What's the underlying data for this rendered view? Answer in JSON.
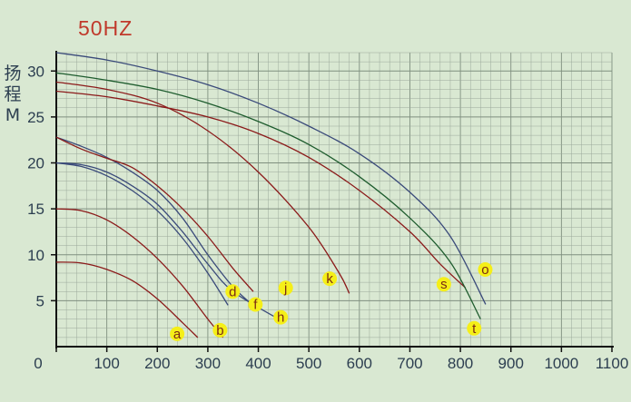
{
  "chart_data": {
    "type": "line",
    "title": "50HZ",
    "ylabel": "扬程M",
    "xlim": [
      0,
      1100
    ],
    "ylim": [
      0,
      32
    ],
    "x_ticks": [
      0,
      100,
      200,
      300,
      400,
      500,
      600,
      700,
      800,
      900,
      1000,
      1100
    ],
    "y_ticks": [
      5,
      10,
      15,
      20,
      25,
      30
    ],
    "grid": true,
    "series": [
      {
        "name": "a",
        "color": "#8b1a1a",
        "points": [
          [
            0,
            9.2
          ],
          [
            50,
            9.1
          ],
          [
            100,
            8.4
          ],
          [
            150,
            7.2
          ],
          [
            200,
            5.2
          ],
          [
            250,
            2.6
          ],
          [
            280,
            1
          ]
        ],
        "label_at": [
          250,
          1
        ]
      },
      {
        "name": "b",
        "color": "#8b1a1a",
        "points": [
          [
            0,
            15
          ],
          [
            50,
            14.8
          ],
          [
            100,
            13.8
          ],
          [
            150,
            12
          ],
          [
            200,
            9.6
          ],
          [
            250,
            6.6
          ],
          [
            300,
            3
          ],
          [
            330,
            1
          ]
        ],
        "label_at": [
          335,
          1.4
        ]
      },
      {
        "name": "d",
        "color": "#3a4a7a",
        "points": [
          [
            0,
            20
          ],
          [
            50,
            19.6
          ],
          [
            100,
            18.6
          ],
          [
            150,
            17
          ],
          [
            200,
            14.8
          ],
          [
            250,
            11.8
          ],
          [
            300,
            8
          ],
          [
            340,
            4.5
          ]
        ],
        "label_at": [
          360,
          5.6
        ]
      },
      {
        "name": "f",
        "color": "#3a4a7a",
        "points": [
          [
            0,
            22.8
          ],
          [
            50,
            21.8
          ],
          [
            100,
            20.6
          ],
          [
            150,
            19
          ],
          [
            200,
            17
          ],
          [
            250,
            14
          ],
          [
            300,
            10
          ],
          [
            350,
            6.5
          ],
          [
            400,
            4
          ]
        ],
        "label_at": [
          405,
          4.2
        ]
      },
      {
        "name": "h",
        "color": "#3a4a7a",
        "points": [
          [
            0,
            20
          ],
          [
            50,
            19.8
          ],
          [
            100,
            19
          ],
          [
            150,
            17.5
          ],
          [
            200,
            15.5
          ],
          [
            250,
            12.5
          ],
          [
            300,
            9
          ],
          [
            350,
            6
          ],
          [
            440,
            3
          ]
        ],
        "label_at": [
          455,
          2.8
        ]
      },
      {
        "name": "j",
        "color": "#8b1a1a",
        "points": [
          [
            0,
            22.8
          ],
          [
            50,
            21.5
          ],
          [
            100,
            20.5
          ],
          [
            150,
            19.5
          ],
          [
            200,
            17.5
          ],
          [
            250,
            15
          ],
          [
            300,
            12
          ],
          [
            350,
            8.5
          ],
          [
            390,
            6
          ]
        ],
        "label_at": [
          465,
          6
        ]
      },
      {
        "name": "k",
        "color": "#8b1a1a",
        "points": [
          [
            0,
            28.8
          ],
          [
            100,
            28
          ],
          [
            200,
            26.5
          ],
          [
            300,
            23.5
          ],
          [
            400,
            19
          ],
          [
            500,
            13
          ],
          [
            560,
            8
          ],
          [
            580,
            5.8
          ]
        ],
        "label_at": [
          552,
          7
        ]
      },
      {
        "name": "s",
        "color": "#8b1a1a",
        "points": [
          [
            0,
            27.8
          ],
          [
            100,
            27.2
          ],
          [
            200,
            26.2
          ],
          [
            300,
            25
          ],
          [
            400,
            23.2
          ],
          [
            500,
            20.6
          ],
          [
            600,
            17
          ],
          [
            700,
            12.5
          ],
          [
            760,
            9
          ],
          [
            810,
            6.4
          ]
        ],
        "label_at": [
          778,
          6.4
        ]
      },
      {
        "name": "t",
        "color": "#1e5c2e",
        "points": [
          [
            0,
            29.8
          ],
          [
            100,
            29
          ],
          [
            200,
            28
          ],
          [
            300,
            26.5
          ],
          [
            400,
            24.5
          ],
          [
            500,
            22
          ],
          [
            600,
            18.5
          ],
          [
            700,
            14
          ],
          [
            780,
            9.2
          ],
          [
            840,
            3
          ]
        ],
        "label_at": [
          838,
          1.6
        ]
      },
      {
        "name": "o",
        "color": "#3a4a7a",
        "points": [
          [
            0,
            32
          ],
          [
            100,
            31.2
          ],
          [
            200,
            30
          ],
          [
            300,
            28.5
          ],
          [
            400,
            26.5
          ],
          [
            500,
            24
          ],
          [
            600,
            21
          ],
          [
            700,
            16.8
          ],
          [
            780,
            12
          ],
          [
            850,
            4.6
          ]
        ],
        "label_at": [
          860,
          8
        ]
      }
    ]
  }
}
